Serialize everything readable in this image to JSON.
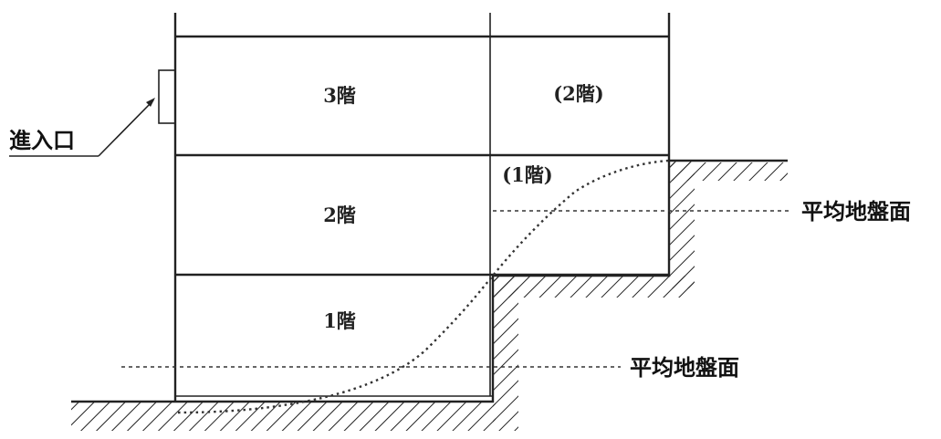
{
  "floors": {
    "left_3f": "3階",
    "left_2f": "2階",
    "left_1f": "1階",
    "right_upper": "(2階)",
    "right_lower": "(1階)"
  },
  "labels": {
    "entrance": "進入口",
    "avg_ground_right": "平均地盤面",
    "avg_ground_left": "平均地盤面"
  }
}
